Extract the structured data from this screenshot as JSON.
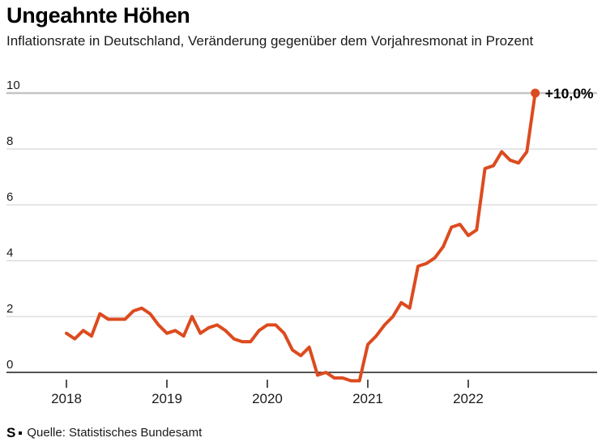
{
  "header": {
    "title": "Ungeahnte Höhen",
    "subtitle": "Inflationsrate in Deutschland, Veränderung gegenüber dem Vorjahresmonat in Prozent"
  },
  "footer": {
    "logo_text": "S",
    "source": "Quelle: Statistisches Bundesamt"
  },
  "colors": {
    "line": "#dc4b1f",
    "grid": "#d8d8d8",
    "grid_strong": "#c4c4c4",
    "axis": "#1a1a1a",
    "text": "#1a1a1a",
    "annotation_text": "#000000"
  },
  "chart_data": {
    "type": "line",
    "title": "Ungeahnte Höhen",
    "subtitle": "Inflationsrate in Deutschland, Veränderung gegenüber dem Vorjahresmonat in Prozent",
    "source": "Quelle: Statistisches Bundesamt",
    "xlabel": "",
    "ylabel": "",
    "grid": "horizontal",
    "legend": "none",
    "ylim": [
      -0.5,
      10.3
    ],
    "y_ticks": [
      0,
      2,
      4,
      6,
      8,
      10
    ],
    "x_tick_labels": [
      "2018",
      "2019",
      "2020",
      "2021",
      "2022"
    ],
    "x_tick_month_indices": [
      0,
      12,
      24,
      36,
      48
    ],
    "months": [
      "2018-01",
      "2018-02",
      "2018-03",
      "2018-04",
      "2018-05",
      "2018-06",
      "2018-07",
      "2018-08",
      "2018-09",
      "2018-10",
      "2018-11",
      "2018-12",
      "2019-01",
      "2019-02",
      "2019-03",
      "2019-04",
      "2019-05",
      "2019-06",
      "2019-07",
      "2019-08",
      "2019-09",
      "2019-10",
      "2019-11",
      "2019-12",
      "2020-01",
      "2020-02",
      "2020-03",
      "2020-04",
      "2020-05",
      "2020-06",
      "2020-07",
      "2020-08",
      "2020-09",
      "2020-10",
      "2020-11",
      "2020-12",
      "2021-01",
      "2021-02",
      "2021-03",
      "2021-04",
      "2021-05",
      "2021-06",
      "2021-07",
      "2021-08",
      "2021-09",
      "2021-10",
      "2021-11",
      "2021-12",
      "2022-01",
      "2022-02",
      "2022-03",
      "2022-04",
      "2022-05",
      "2022-06",
      "2022-07",
      "2022-08",
      "2022-09"
    ],
    "series": [
      {
        "name": "Inflationsrate Deutschland",
        "color": "#dc4b1f",
        "values": [
          1.4,
          1.2,
          1.5,
          1.3,
          2.1,
          1.9,
          1.9,
          1.9,
          2.2,
          2.3,
          2.1,
          1.7,
          1.4,
          1.5,
          1.3,
          2.0,
          1.4,
          1.6,
          1.7,
          1.5,
          1.2,
          1.1,
          1.1,
          1.5,
          1.7,
          1.7,
          1.4,
          0.8,
          0.6,
          0.9,
          -0.1,
          0.0,
          -0.2,
          -0.2,
          -0.3,
          -0.3,
          1.0,
          1.3,
          1.7,
          2.0,
          2.5,
          2.3,
          3.8,
          3.9,
          4.1,
          4.5,
          5.2,
          5.3,
          4.9,
          5.1,
          7.3,
          7.4,
          7.9,
          7.6,
          7.5,
          7.9,
          10.0
        ]
      }
    ],
    "annotation": {
      "text": "+10,0%",
      "month": "2022-09",
      "value": 10.0
    }
  }
}
